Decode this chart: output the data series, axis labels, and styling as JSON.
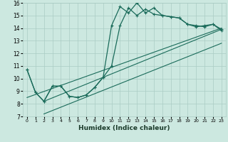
{
  "xlabel": "Humidex (Indice chaleur)",
  "bg_color": "#cce8e0",
  "grid_color": "#aaccc4",
  "line_color": "#1a6b5a",
  "xlim": [
    -0.5,
    23.5
  ],
  "ylim": [
    7,
    16
  ],
  "xticks": [
    0,
    1,
    2,
    3,
    4,
    5,
    6,
    7,
    8,
    9,
    10,
    11,
    12,
    13,
    14,
    15,
    16,
    17,
    18,
    19,
    20,
    21,
    22,
    23
  ],
  "yticks": [
    7,
    8,
    9,
    10,
    11,
    12,
    13,
    14,
    15,
    16
  ],
  "curve1_x": [
    0,
    1,
    2,
    3,
    4,
    5,
    6,
    7,
    8,
    9,
    10,
    11,
    12,
    13,
    14,
    15,
    16,
    17,
    18,
    19,
    20,
    21,
    22,
    23
  ],
  "curve1_y": [
    10.7,
    8.9,
    8.2,
    9.4,
    9.4,
    8.6,
    8.5,
    8.7,
    9.3,
    10.1,
    11.0,
    14.2,
    15.6,
    15.0,
    15.5,
    15.1,
    15.0,
    14.9,
    14.8,
    14.3,
    14.1,
    14.2,
    14.3,
    13.9
  ],
  "curve2_x": [
    0,
    1,
    2,
    3,
    4,
    5,
    6,
    7,
    8,
    9,
    10,
    11,
    12,
    13,
    14,
    15,
    16,
    17,
    18,
    19,
    20,
    21,
    22,
    23
  ],
  "curve2_y": [
    10.7,
    8.9,
    8.2,
    9.4,
    9.4,
    8.6,
    8.5,
    8.7,
    9.3,
    10.1,
    14.2,
    15.7,
    15.2,
    16.0,
    15.2,
    15.6,
    15.0,
    14.9,
    14.8,
    14.3,
    14.2,
    14.1,
    14.3,
    13.8
  ],
  "line1_x": [
    2,
    23
  ],
  "line1_y": [
    8.2,
    13.9
  ],
  "line2_x": [
    2,
    23
  ],
  "line2_y": [
    7.2,
    12.8
  ],
  "line3_x": [
    0,
    23
  ],
  "line3_y": [
    8.5,
    14.0
  ]
}
